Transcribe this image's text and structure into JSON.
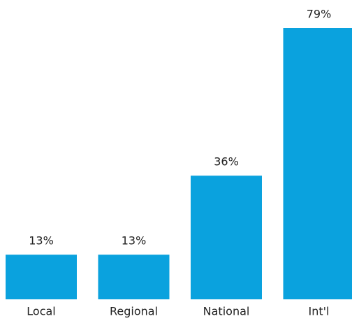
{
  "chart_data": {
    "type": "bar",
    "categories": [
      "Local",
      "Regional",
      "National",
      "Int'l"
    ],
    "values": [
      13,
      13,
      36,
      79
    ],
    "value_labels": [
      "13%",
      "13%",
      "36%",
      "79%"
    ],
    "color": "#0aa2de"
  }
}
